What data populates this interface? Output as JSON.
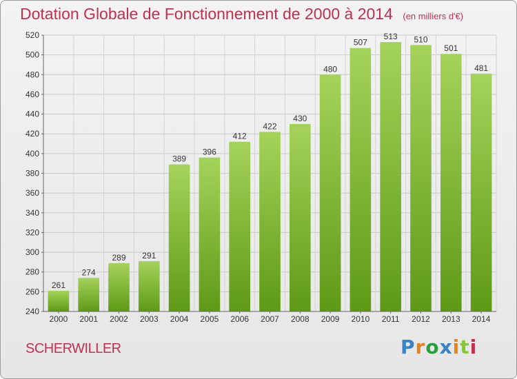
{
  "header": {
    "title": "Dotation Globale de Fonctionnement de 2000 à 2014",
    "subtitle": "(en milliers d'€)"
  },
  "footer": {
    "location": "SCHERWILLER",
    "logo_text": "Proxiti"
  },
  "colors": {
    "title": "#c0314f",
    "bar_light": "#a4d35a",
    "bar_dark": "#5e9a16",
    "grid": "#c8c8c8"
  },
  "chart_data": {
    "type": "bar",
    "categories": [
      "2000",
      "2001",
      "2002",
      "2003",
      "2004",
      "2005",
      "2006",
      "2007",
      "2008",
      "2009",
      "2010",
      "2011",
      "2012",
      "2013",
      "2014"
    ],
    "values": [
      261,
      274,
      289,
      291,
      389,
      396,
      412,
      422,
      430,
      480,
      507,
      513,
      510,
      501,
      481
    ],
    "title": "Dotation Globale de Fonctionnement de 2000 à 2014",
    "subtitle": "(en milliers d'€)",
    "xlabel": "",
    "ylabel": "",
    "ylim": [
      240,
      520
    ],
    "yticks": [
      240,
      260,
      280,
      300,
      320,
      340,
      360,
      380,
      400,
      420,
      440,
      460,
      480,
      500,
      520
    ],
    "grid": true,
    "data_labels": true
  }
}
